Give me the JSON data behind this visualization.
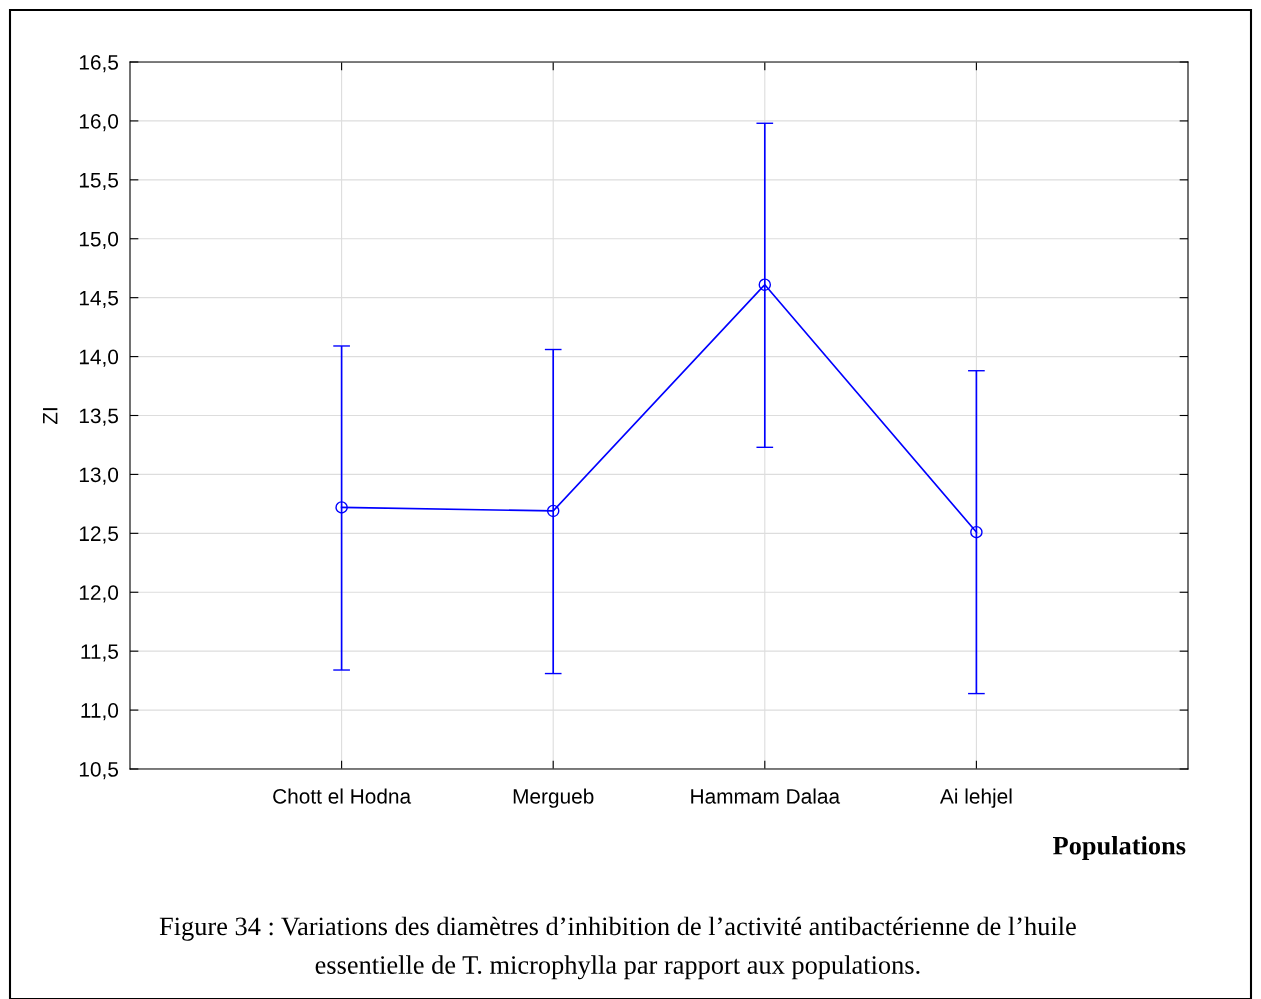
{
  "chart_data": {
    "type": "line",
    "xlabel": "Populations",
    "ylabel": "ZI",
    "categories": [
      "Chott el Hodna",
      "Mergueb",
      "Hammam Dalaa",
      "Ai lehjel"
    ],
    "series": [
      {
        "color": "#0000ff",
        "values": [
          12.72,
          12.69,
          14.61,
          12.51
        ],
        "errors": [
          [
            11.34,
            14.09
          ],
          [
            11.31,
            14.06
          ],
          [
            13.23,
            15.98
          ],
          [
            11.14,
            13.88
          ]
        ]
      }
    ],
    "ylim": [
      10.5,
      16.5
    ],
    "yticks": [
      {
        "value": 10.5,
        "label": "10,5"
      },
      {
        "value": 11.0,
        "label": "11,0"
      },
      {
        "value": 11.5,
        "label": "11,5"
      },
      {
        "value": 12.0,
        "label": "12,0"
      },
      {
        "value": 12.5,
        "label": "12,5"
      },
      {
        "value": 13.0,
        "label": "13,0"
      },
      {
        "value": 13.5,
        "label": "13,5"
      },
      {
        "value": 14.0,
        "label": "14,0"
      },
      {
        "value": 14.5,
        "label": "14,5"
      },
      {
        "value": 15.0,
        "label": "15,0"
      },
      {
        "value": 15.5,
        "label": "15,5"
      },
      {
        "value": 16.0,
        "label": "16,0"
      },
      {
        "value": 16.5,
        "label": "16,5"
      }
    ],
    "grid": true,
    "marker": "circle",
    "line_style": "solid",
    "annotations": [
      "Figure 34 : Variations des diamètres d’inhibition de l’activité antibactérienne de l’huile\nessentielle de T. microphylla par rapport aux populations."
    ]
  }
}
